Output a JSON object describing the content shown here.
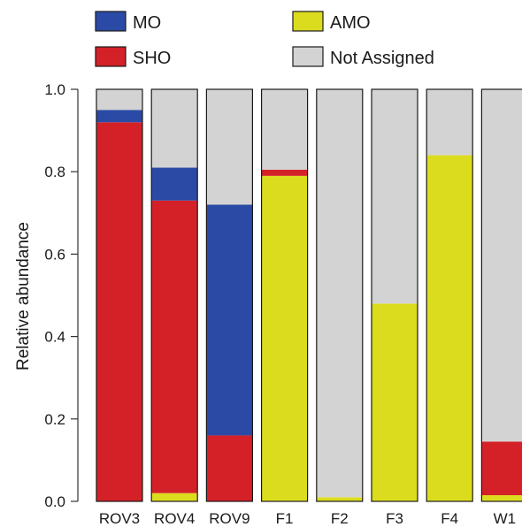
{
  "chart_data": {
    "type": "bar",
    "stacked": true,
    "ylabel": "Relative abundance",
    "ylim": [
      0,
      1
    ],
    "yticks": [
      "0.0",
      "0.2",
      "0.4",
      "0.6",
      "0.8",
      "1.0"
    ],
    "categories": [
      "ROV3",
      "ROV4",
      "ROV9",
      "F1",
      "F2",
      "F3",
      "F4",
      "W1"
    ],
    "series": [
      {
        "name": "AMO",
        "color": "#dcdc1e",
        "values": [
          0.0,
          0.02,
          0.0,
          0.79,
          0.01,
          0.48,
          0.84,
          0.015
        ]
      },
      {
        "name": "SHO",
        "color": "#d42127",
        "values": [
          0.92,
          0.71,
          0.16,
          0.015,
          0.0,
          0.0,
          0.0,
          0.13
        ]
      },
      {
        "name": "MO",
        "color": "#2b4aa5",
        "values": [
          0.03,
          0.08,
          0.56,
          0.0,
          0.0,
          0.0,
          0.0,
          0.0
        ]
      },
      {
        "name": "Not Assigned",
        "color": "#d3d3d3",
        "values": [
          0.05,
          0.19,
          0.28,
          0.195,
          0.99,
          0.52,
          0.16,
          0.855
        ]
      }
    ],
    "legend": {
      "placement": "top",
      "items": [
        "MO",
        "SHO",
        "AMO",
        "Not Assigned"
      ]
    },
    "grid": false
  }
}
